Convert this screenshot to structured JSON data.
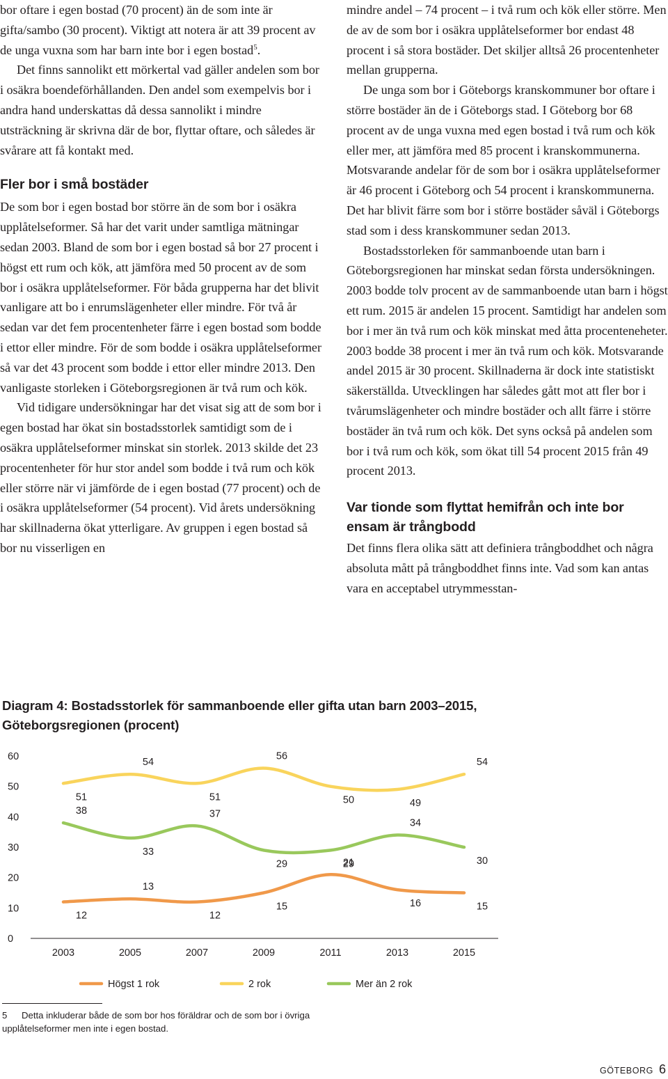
{
  "left_column": {
    "p1_text": "bor oftare i egen bostad (70 procent) än de som inte är gifta/sambo (30 procent). Viktigt att notera är att 39 procent av de unga vuxna som har barn inte bor i egen bostad",
    "p1_footnote_ref": "5",
    "p1_tail": ".",
    "p2": "Det finns sannolikt ett mörkertal vad gäller andelen som bor i osäkra boendeförhållanden. Den andel som exempelvis bor i andra hand underskattas då dessa sannolikt i mindre utsträckning är skrivna där de bor, flyttar oftare, och således är svårare att få kontakt med.",
    "heading": "Fler bor i små bostäder",
    "p3": "De som bor i egen bostad bor större än de som bor i osäkra upplåtelseformer. Så har det varit under samtliga mätningar sedan 2003. Bland de som bor i egen bostad så bor 27 procent i högst ett rum och kök, att jämföra med 50 procent av de som bor i osäkra upplåtelseformer. För båda grupperna har det blivit vanligare att bo i enrumslägenheter eller mindre. För två år sedan var det fem procentenheter färre i egen bostad som bodde i ettor eller mindre. För de som bodde i osäkra upplåtelseformer så var det 43 procent som bodde i ettor eller mindre 2013. Den vanligaste storleken i Göteborgsregionen är två rum och kök.",
    "p4": "Vid tidigare undersökningar har det visat sig att de som bor i egen bostad har ökat sin bostadsstorlek samtidigt som de i osäkra upplåtelseformer minskat sin storlek. 2013 skilde det 23 procentenheter för hur stor andel som bodde i två rum och kök eller större när vi jämförde de i egen bostad (77 procent) och de i osäkra upplåtelseformer (54 procent). Vid årets undersökning har skillnaderna ökat ytterligare. Av gruppen i egen bostad så bor nu visserligen en"
  },
  "right_column": {
    "p1": "mindre andel – 74 procent – i två rum och kök eller större. Men de av de som bor i osäkra upplåtelseformer bor endast 48 procent i så stora bostäder. Det skiljer alltså 26 procentenheter mellan grupperna.",
    "p2": "De unga som bor i Göteborgs kranskommuner bor oftare i större bostäder än de i Göteborgs stad. I Göteborg bor 68 procent av de unga vuxna med egen bostad i två rum och kök eller mer, att jämföra med 85 procent i kranskommunerna. Motsvarande andelar för de som bor i osäkra upplåtelseformer är 46 procent i Göteborg och 54 procent i kranskommunerna. Det har blivit färre som bor i större bostäder såväl i Göteborgs stad som i dess kranskommuner sedan 2013.",
    "p3": "Bostadsstorleken för sammanboende utan barn i Göteborgsregionen har minskat sedan första undersökningen. 2003 bodde tolv procent av de sammanboende utan barn i högst ett rum. 2015 är andelen 15 procent. Samtidigt har andelen som bor i mer än två rum och kök minskat med åtta procenteneheter. 2003 bodde 38 procent i mer än två rum och kök. Motsvarande andel 2015 är 30 procent. Skillnaderna är dock inte statistiskt säkerställda. Utvecklingen har således gått mot att fler bor i tvårumslägenheter och mindre bostäder och allt färre i större bostäder än två rum och kök. Det syns också på andelen som bor i två rum och kök, som ökat till 54 procent 2015 från 49 procent 2013.",
    "heading": "Var tionde som flyttat hemifrån och inte bor ensam är trångbodd",
    "p4": "Det finns flera olika sätt att definiera trångboddhet och några absoluta mått på trångboddhet finns inte. Vad som kan antas vara en acceptabel utrymmesstan-"
  },
  "diagram": {
    "title_line1": "Diagram 4: Bostadsstorlek för sammanboende eller gifta utan barn 2003–2015,",
    "title_line2": "Göteborgsregionen (procent)"
  },
  "chart_data": {
    "type": "line",
    "title": "Diagram 4: Bostadsstorlek för sammanboende eller gifta utan barn 2003–2015, Göteborgsregionen (procent)",
    "x": [
      "2003",
      "2005",
      "2007",
      "2009",
      "2011",
      "2013",
      "2015"
    ],
    "ylim": [
      0,
      60
    ],
    "yticks": [
      0,
      10,
      20,
      30,
      40,
      50,
      60
    ],
    "grid": false,
    "legend_position": "bottom",
    "series": [
      {
        "name": "Högst 1 rok",
        "color": "#f0994a",
        "values": [
          12,
          13,
          12,
          15,
          21,
          16,
          15
        ],
        "labels": [
          "12",
          "13",
          "12",
          "15",
          "21",
          "16",
          "15"
        ]
      },
      {
        "name": "2 rok",
        "color": "#f9d45c",
        "values": [
          51,
          54,
          51,
          56,
          50,
          49,
          54
        ],
        "labels": [
          "51",
          "54",
          "51",
          "56",
          "50",
          "49",
          "54"
        ]
      },
      {
        "name": "Mer än 2 rok",
        "color": "#99c85c",
        "values": [
          38,
          33,
          37,
          29,
          29,
          34,
          30
        ],
        "labels": [
          "38",
          "33",
          "37",
          "29",
          "29",
          "34",
          "30"
        ]
      }
    ]
  },
  "footnote": {
    "number": "5",
    "text": "Detta inkluderar både de som bor hos föräldrar och de som bor i övriga upplåtelseformer men inte i egen bostad."
  },
  "footer": {
    "region": "GÖTEBORG",
    "page_number": "6"
  }
}
